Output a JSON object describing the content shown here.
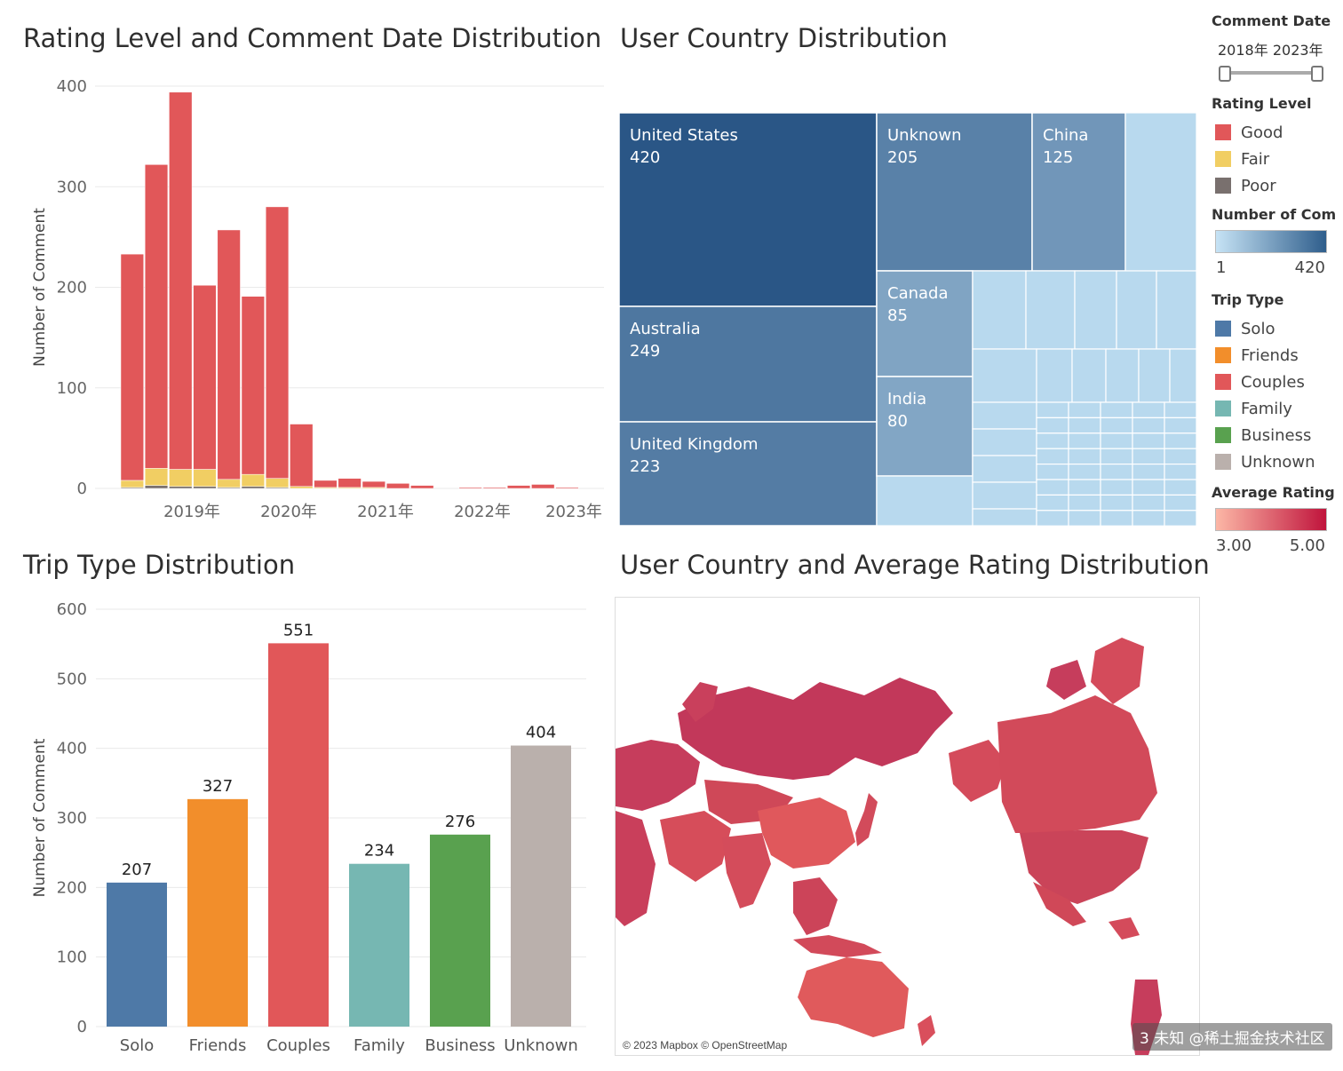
{
  "titles": {
    "rating_dates": "Rating Level and Comment Date Distribution",
    "country": "User Country Distribution",
    "trip": "Trip Type Distribution",
    "map": "User Country and Average Rating Distribution"
  },
  "legend": {
    "date_title": "Comment Date",
    "date_start": "2018年",
    "date_end": "2023年",
    "rating_title": "Rating Level",
    "rating_items": [
      {
        "label": "Good",
        "color": "#e15759"
      },
      {
        "label": "Fair",
        "color": "#f1ce63"
      },
      {
        "label": "Poor",
        "color": "#79706e"
      }
    ],
    "count_title": "Number of Com..",
    "count_min": "1",
    "count_max": "420",
    "trip_title": "Trip Type",
    "trip_items": [
      {
        "label": "Solo",
        "color": "#4e79a7"
      },
      {
        "label": "Friends",
        "color": "#f28e2b"
      },
      {
        "label": "Couples",
        "color": "#e15759"
      },
      {
        "label": "Family",
        "color": "#76b7b2"
      },
      {
        "label": "Business",
        "color": "#59a14f"
      },
      {
        "label": "Unknown",
        "color": "#bab0ac"
      }
    ],
    "avg_title": "Average Rating",
    "avg_min": "3.00",
    "avg_max": "5.00"
  },
  "map": {
    "attribution": "© 2023 Mapbox © OpenStreetMap",
    "watermark": "3 未知 @稀土掘金技术社区"
  },
  "chart_data": [
    {
      "type": "bar",
      "subtype": "stacked-histogram",
      "title": "Rating Level and Comment Date Distribution",
      "ylabel": "Number of Comment",
      "xlabel": "",
      "ylim": [
        0,
        400
      ],
      "yticks": [
        0,
        100,
        200,
        300,
        400
      ],
      "xticks": [
        "2019年",
        "2020年",
        "2021年",
        "2022年",
        "2023年"
      ],
      "categories": [
        "2018 Q3",
        "2018 Q4",
        "2019 Q1",
        "2019 Q2",
        "2019 Q3",
        "2019 Q4",
        "2020 Q1",
        "2020 Q2",
        "2020 Q3",
        "2020 Q4",
        "2021 Q1",
        "2021 Q2",
        "2021 Q3",
        "2021 Q4",
        "2022 Q1",
        "2022 Q2",
        "2022 Q3",
        "2022 Q4",
        "2023 Q1"
      ],
      "series": [
        {
          "name": "Poor",
          "color": "#79706e",
          "values": [
            1,
            3,
            2,
            2,
            1,
            2,
            1,
            0,
            0,
            0,
            0,
            0,
            0,
            0,
            0,
            0,
            0,
            0,
            0
          ]
        },
        {
          "name": "Fair",
          "color": "#f1ce63",
          "values": [
            7,
            17,
            17,
            17,
            8,
            12,
            9,
            2,
            1,
            1,
            1,
            0,
            0,
            0,
            0,
            0,
            0,
            0,
            0
          ]
        },
        {
          "name": "Good",
          "color": "#e15759",
          "values": [
            225,
            302,
            375,
            183,
            248,
            177,
            270,
            62,
            7,
            9,
            6,
            5,
            3,
            0,
            1,
            1,
            3,
            4,
            1
          ]
        }
      ]
    },
    {
      "type": "treemap",
      "title": "User Country Distribution",
      "color_range": [
        1,
        420
      ],
      "items": [
        {
          "name": "United States",
          "value": 420
        },
        {
          "name": "Unknown",
          "value": 205
        },
        {
          "name": "China",
          "value": 125
        },
        {
          "name": "Australia",
          "value": 249
        },
        {
          "name": "United Kingdom",
          "value": 223
        },
        {
          "name": "Canada",
          "value": 85
        },
        {
          "name": "India",
          "value": 80
        }
      ]
    },
    {
      "type": "bar",
      "title": "Trip Type Distribution",
      "ylabel": "Number of Comment",
      "xlabel": "",
      "ylim": [
        0,
        600
      ],
      "yticks": [
        0,
        100,
        200,
        300,
        400,
        500,
        600
      ],
      "categories": [
        "Solo",
        "Friends",
        "Couples",
        "Family",
        "Business",
        "Unknown"
      ],
      "values": [
        207,
        327,
        551,
        234,
        276,
        404
      ],
      "colors": [
        "#4e79a7",
        "#f28e2b",
        "#e15759",
        "#76b7b2",
        "#59a14f",
        "#bab0ac"
      ]
    },
    {
      "type": "map",
      "title": "User Country and Average Rating Distribution",
      "color_range": [
        3.0,
        5.0
      ]
    }
  ]
}
